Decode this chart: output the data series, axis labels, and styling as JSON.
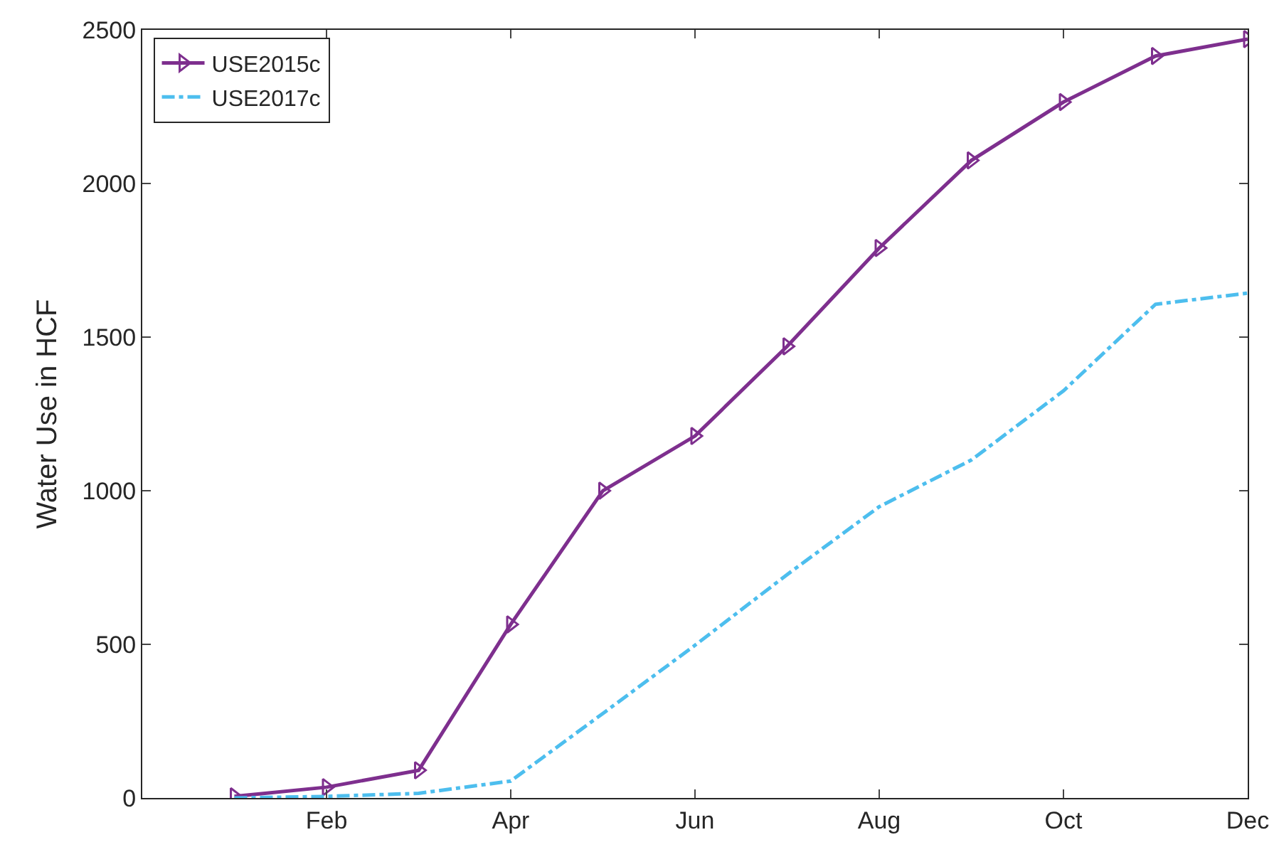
{
  "chart_data": {
    "type": "line",
    "ylabel": "Water Use in HCF",
    "categories": [
      null,
      "Feb",
      null,
      "Apr",
      null,
      "Jun",
      null,
      "Aug",
      null,
      "Oct",
      null,
      "Dec"
    ],
    "ylim": [
      0,
      2500
    ],
    "yticks": [
      0,
      500,
      1000,
      1500,
      2000,
      2500
    ],
    "grid": false,
    "legend": "top left",
    "series": [
      {
        "name": "USE2015c",
        "color": "#7e2f8e",
        "marker": "triangle",
        "line_style": "solid",
        "values": [
          5,
          35,
          90,
          565,
          1000,
          1178,
          1470,
          1790,
          2075,
          2265,
          2415,
          2470
        ]
      },
      {
        "name": "USE2017c",
        "color": "#4dbeee",
        "marker": "none",
        "line_style": "dashed",
        "values": [
          0,
          5,
          15,
          55,
          275,
          497,
          727,
          948,
          1100,
          1325,
          1607,
          1643
        ]
      }
    ]
  }
}
